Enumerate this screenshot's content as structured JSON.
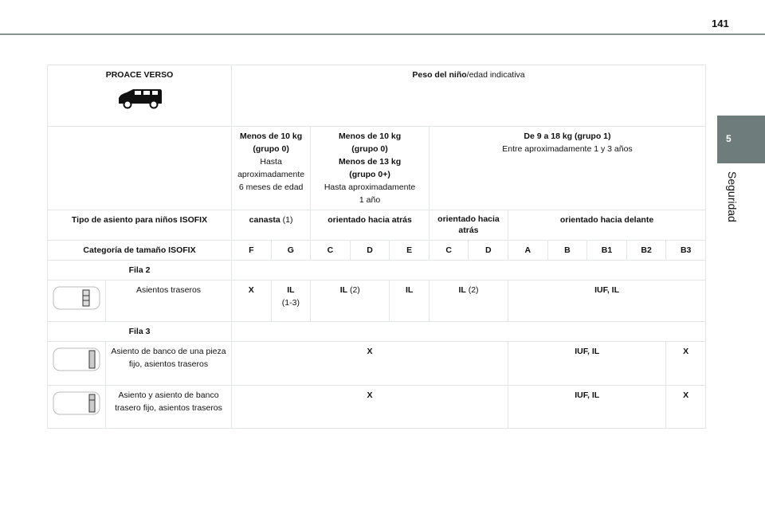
{
  "page_number": "141",
  "side_tab": {
    "number": "5",
    "label": "Seguridad",
    "color": "#6e7d7b"
  },
  "table": {
    "vehicle": "PROACE VERSO",
    "weight_header_bold": "Peso del niño",
    "weight_header_rest": "/edad indicativa",
    "groups": [
      {
        "l1": "Menos de 10 kg",
        "l2": "(grupo 0)",
        "l3": "Hasta",
        "l4": "aproximadamente",
        "l5": "6 meses de edad"
      },
      {
        "l1": "Menos de 10 kg",
        "l2": "(grupo 0)",
        "l3": "Menos de 13 kg",
        "l4": "(grupo 0+)",
        "l5": "Hasta aproximadamente",
        "l6": "1 año"
      },
      {
        "l1": "De 9 a 18 kg (grupo 1)",
        "l2": "Entre aproximadamente 1 y 3 años"
      }
    ],
    "type_label": "Tipo de asiento para niños ISOFIX",
    "types": [
      {
        "bold": "canasta",
        "rest": " (1)"
      },
      {
        "bold": "orientado hacia atrás"
      },
      {
        "bold": "orientado hacia atrás"
      },
      {
        "bold": "orientado hacia delante"
      }
    ],
    "size_label": "Categoría de tamaño ISOFIX",
    "sizes": [
      "F",
      "G",
      "C",
      "D",
      "E",
      "C",
      "D",
      "A",
      "B",
      "B1",
      "B2",
      "B3"
    ],
    "fila2": "Fila 2",
    "fila2_rows": [
      {
        "label": "Asientos traseros",
        "F": "X",
        "G_b": "IL",
        "G_r": "(1-3)",
        "CD_b": "IL",
        "CD_r": " (2)",
        "E": "IL",
        "CD2_b": "IL",
        "CD2_r": " (2)",
        "AB2": "IUF, IL"
      }
    ],
    "fila3": "Fila 3",
    "fila3_rows": [
      {
        "label": "Asiento de banco de una pieza fijo, asientos traseros",
        "FD": "X",
        "AB2": "IUF, IL",
        "B3": "X"
      },
      {
        "label": "Asiento y asiento de banco trasero fijo, asientos traseros",
        "FD": "X",
        "AB2": "IUF, IL",
        "B3": "X"
      }
    ]
  }
}
